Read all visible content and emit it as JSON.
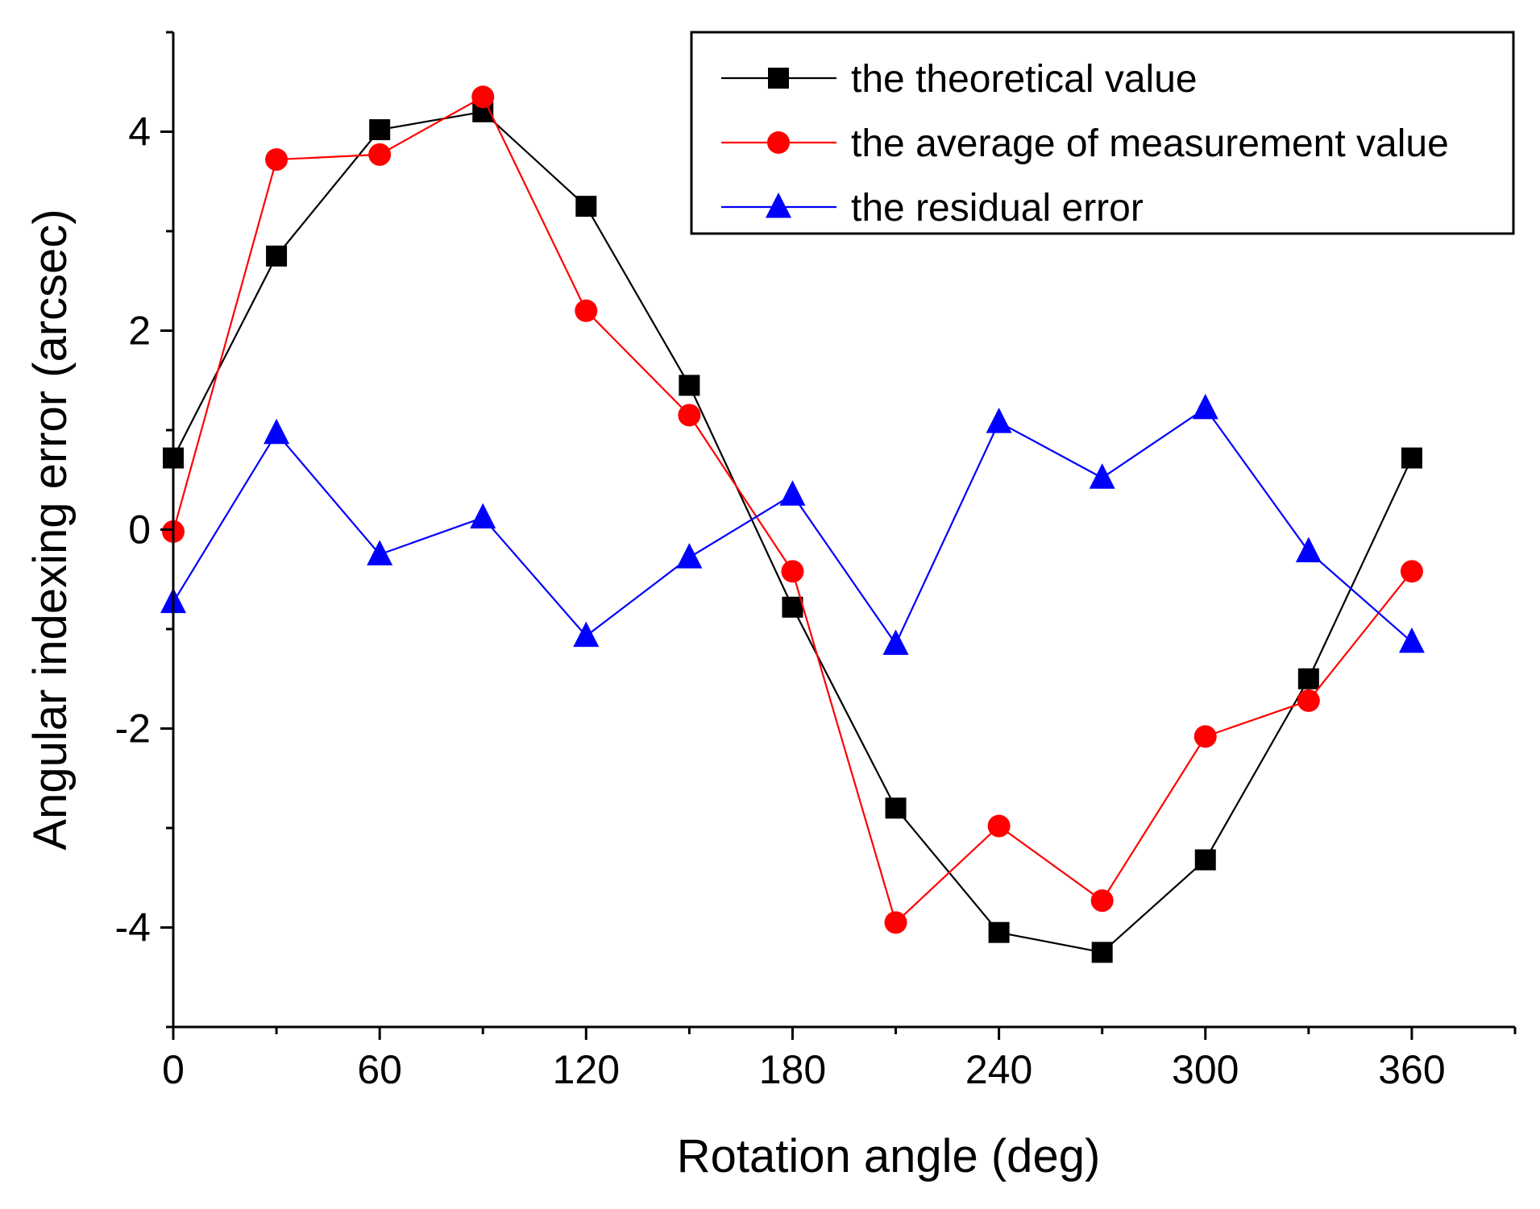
{
  "chart_data": {
    "type": "line",
    "title": "",
    "xlabel": "Rotation angle (deg)",
    "ylabel": "Angular indexing error (arcsec)",
    "xlim": [
      0,
      390
    ],
    "ylim": [
      -5,
      5
    ],
    "xticks": [
      0,
      60,
      120,
      180,
      240,
      300,
      360
    ],
    "xtick_labels": [
      "0",
      "60",
      "120",
      "180",
      "240",
      "300",
      "360"
    ],
    "yticks": [
      -4,
      -2,
      0,
      2,
      4
    ],
    "ytick_labels": [
      "-4",
      "-2",
      "0",
      "2",
      "4"
    ],
    "legend_position": "top-right",
    "x": [
      0,
      30,
      60,
      90,
      120,
      150,
      180,
      210,
      240,
      270,
      300,
      330,
      360
    ],
    "series": [
      {
        "name": "the theoretical value",
        "color": "#000000",
        "marker": "square",
        "values": [
          0.72,
          2.75,
          4.02,
          4.2,
          3.25,
          1.45,
          -0.78,
          -2.8,
          -4.05,
          -4.25,
          -3.32,
          -1.5,
          0.72
        ]
      },
      {
        "name": "the average of measurement value",
        "color": "#ff0000",
        "marker": "circle",
        "values": [
          -0.02,
          3.72,
          3.77,
          4.35,
          2.2,
          1.15,
          -0.42,
          -3.95,
          -2.98,
          -3.73,
          -2.08,
          -1.72,
          -0.42
        ]
      },
      {
        "name": "the residual error",
        "color": "#0000ff",
        "marker": "triangle",
        "values": [
          -0.73,
          0.97,
          -0.25,
          0.12,
          -1.07,
          -0.28,
          0.35,
          -1.15,
          1.08,
          0.52,
          1.22,
          -0.22,
          -1.13
        ]
      }
    ]
  }
}
